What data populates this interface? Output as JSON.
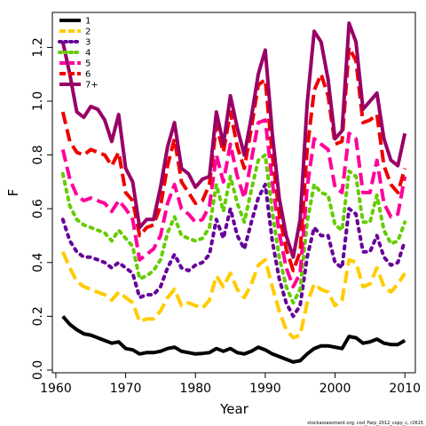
{
  "chart_data": {
    "type": "line",
    "xlabel": "Year",
    "ylabel": "F",
    "xlim": [
      1959.5,
      2011.5
    ],
    "ylim": [
      -0.01,
      1.33
    ],
    "xticks": [
      1960,
      1970,
      1980,
      1990,
      2000,
      2010
    ],
    "yticks": [
      0.0,
      0.2,
      0.4,
      0.6,
      0.8,
      1.0,
      1.2
    ],
    "ytick_labels": [
      "0.0",
      "0.2",
      "0.4",
      "0.6",
      "0.8",
      "1.0",
      "1.2"
    ],
    "legend_position": "top-left",
    "grid": false,
    "x": [
      1961,
      1962,
      1963,
      1964,
      1965,
      1966,
      1967,
      1968,
      1969,
      1970,
      1971,
      1972,
      1973,
      1974,
      1975,
      1976,
      1977,
      1978,
      1979,
      1980,
      1981,
      1982,
      1983,
      1984,
      1985,
      1986,
      1987,
      1988,
      1989,
      1990,
      1991,
      1992,
      1993,
      1994,
      1995,
      1996,
      1997,
      1998,
      1999,
      2000,
      2001,
      2002,
      2003,
      2004,
      2005,
      2006,
      2007,
      2008,
      2009,
      2010
    ],
    "series": [
      {
        "name": "1",
        "color": "#000000",
        "dash": "solid",
        "values": [
          0.2,
          0.17,
          0.15,
          0.135,
          0.13,
          0.12,
          0.11,
          0.1,
          0.105,
          0.08,
          0.075,
          0.06,
          0.065,
          0.065,
          0.07,
          0.08,
          0.085,
          0.07,
          0.065,
          0.06,
          0.062,
          0.065,
          0.08,
          0.07,
          0.08,
          0.065,
          0.06,
          0.07,
          0.085,
          0.075,
          0.06,
          0.05,
          0.04,
          0.03,
          0.035,
          0.06,
          0.08,
          0.09,
          0.09,
          0.085,
          0.08,
          0.125,
          0.12,
          0.1,
          0.105,
          0.115,
          0.1,
          0.095,
          0.095,
          0.11
        ]
      },
      {
        "name": "2",
        "color": "#FFCC00",
        "dash": "dashed",
        "values": [
          0.44,
          0.38,
          0.33,
          0.31,
          0.3,
          0.29,
          0.28,
          0.26,
          0.29,
          0.27,
          0.25,
          0.18,
          0.19,
          0.19,
          0.22,
          0.27,
          0.3,
          0.24,
          0.25,
          0.24,
          0.23,
          0.26,
          0.35,
          0.31,
          0.36,
          0.3,
          0.27,
          0.32,
          0.39,
          0.41,
          0.31,
          0.22,
          0.15,
          0.12,
          0.13,
          0.25,
          0.32,
          0.3,
          0.29,
          0.24,
          0.26,
          0.41,
          0.4,
          0.31,
          0.32,
          0.38,
          0.31,
          0.29,
          0.32,
          0.36
        ]
      },
      {
        "name": "3",
        "color": "#660099",
        "dash": "dotted",
        "values": [
          0.56,
          0.48,
          0.44,
          0.42,
          0.42,
          0.41,
          0.4,
          0.38,
          0.4,
          0.38,
          0.36,
          0.27,
          0.28,
          0.28,
          0.31,
          0.38,
          0.43,
          0.38,
          0.37,
          0.39,
          0.4,
          0.43,
          0.56,
          0.49,
          0.6,
          0.5,
          0.45,
          0.55,
          0.64,
          0.69,
          0.48,
          0.34,
          0.25,
          0.2,
          0.24,
          0.42,
          0.53,
          0.5,
          0.5,
          0.4,
          0.38,
          0.6,
          0.58,
          0.44,
          0.44,
          0.5,
          0.42,
          0.39,
          0.4,
          0.48
        ]
      },
      {
        "name": "4",
        "color": "#66CC00",
        "dash": "dotted",
        "values": [
          0.73,
          0.61,
          0.56,
          0.54,
          0.53,
          0.52,
          0.51,
          0.48,
          0.52,
          0.49,
          0.46,
          0.34,
          0.35,
          0.37,
          0.41,
          0.51,
          0.57,
          0.5,
          0.49,
          0.48,
          0.49,
          0.53,
          0.69,
          0.59,
          0.72,
          0.62,
          0.55,
          0.67,
          0.78,
          0.8,
          0.59,
          0.42,
          0.31,
          0.25,
          0.3,
          0.55,
          0.69,
          0.66,
          0.65,
          0.54,
          0.52,
          0.74,
          0.72,
          0.55,
          0.55,
          0.65,
          0.52,
          0.47,
          0.48,
          0.55
        ]
      },
      {
        "name": "5",
        "color": "#FF0099",
        "dash": "dashed",
        "values": [
          0.82,
          0.71,
          0.65,
          0.63,
          0.64,
          0.63,
          0.62,
          0.59,
          0.63,
          0.6,
          0.56,
          0.41,
          0.43,
          0.45,
          0.5,
          0.62,
          0.69,
          0.6,
          0.58,
          0.55,
          0.56,
          0.61,
          0.8,
          0.7,
          0.84,
          0.72,
          0.64,
          0.78,
          0.92,
          0.93,
          0.7,
          0.51,
          0.38,
          0.31,
          0.36,
          0.68,
          0.86,
          0.84,
          0.82,
          0.68,
          0.66,
          0.88,
          0.86,
          0.66,
          0.66,
          0.78,
          0.62,
          0.57,
          0.58,
          0.72
        ]
      },
      {
        "name": "6",
        "color": "#EE0000",
        "dash": "dashed",
        "values": [
          0.96,
          0.85,
          0.81,
          0.8,
          0.82,
          0.81,
          0.8,
          0.76,
          0.81,
          0.66,
          0.63,
          0.5,
          0.53,
          0.54,
          0.61,
          0.76,
          0.86,
          0.7,
          0.66,
          0.62,
          0.63,
          0.69,
          0.91,
          0.81,
          0.96,
          0.83,
          0.75,
          0.9,
          1.06,
          1.08,
          0.8,
          0.58,
          0.45,
          0.37,
          0.44,
          0.82,
          1.04,
          1.1,
          1.02,
          0.84,
          0.85,
          1.2,
          1.15,
          0.92,
          0.93,
          0.95,
          0.76,
          0.69,
          0.66,
          0.75
        ]
      },
      {
        "name": "7+",
        "color": "#990066",
        "dash": "solid",
        "values": [
          1.22,
          1.1,
          0.96,
          0.94,
          0.98,
          0.97,
          0.93,
          0.85,
          0.95,
          0.75,
          0.7,
          0.53,
          0.56,
          0.56,
          0.68,
          0.83,
          0.92,
          0.75,
          0.73,
          0.68,
          0.71,
          0.72,
          0.96,
          0.84,
          1.02,
          0.9,
          0.8,
          0.94,
          1.1,
          1.19,
          0.88,
          0.64,
          0.5,
          0.42,
          0.56,
          0.99,
          1.26,
          1.22,
          1.08,
          0.86,
          0.89,
          1.29,
          1.22,
          0.97,
          1.0,
          1.03,
          0.86,
          0.78,
          0.76,
          0.88
        ]
      }
    ]
  },
  "footer_note": "stockassessment.org, cod_Farp_2012_copy_c, r2615"
}
